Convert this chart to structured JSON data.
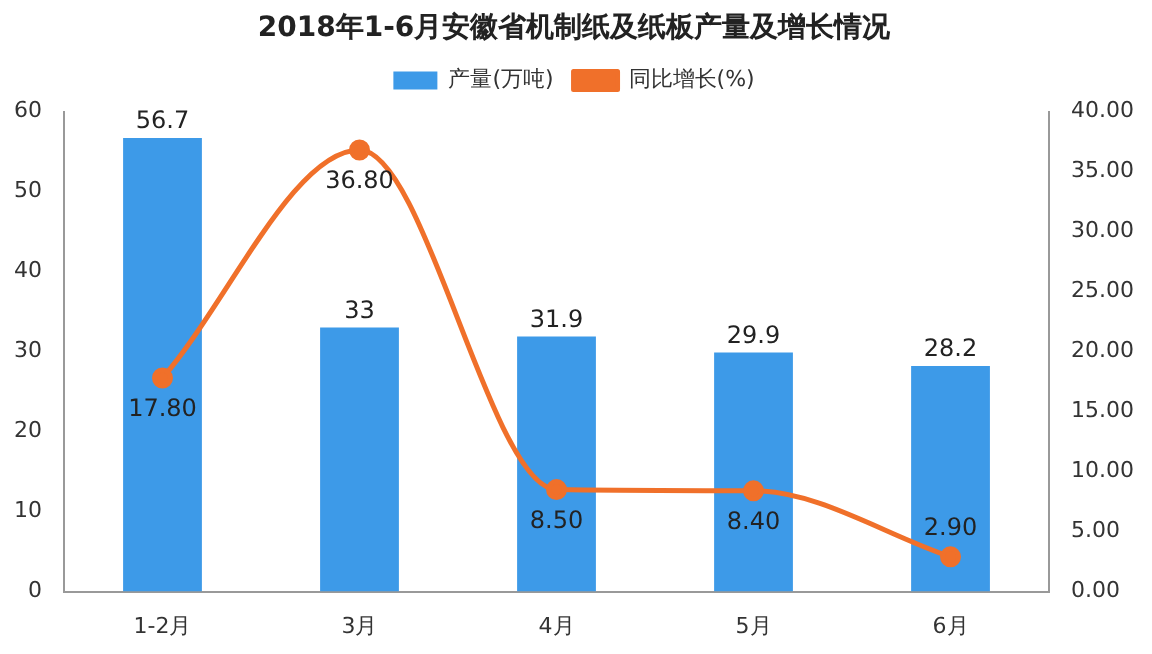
{
  "chart_data": {
    "type": "bar",
    "title": "2018年1-6月安徽省机制纸及纸板产量及增长情况",
    "categories": [
      "1-2月",
      "3月",
      "4月",
      "5月",
      "6月"
    ],
    "series": [
      {
        "name": "产量(万吨)",
        "color": "#3d9ae8",
        "values": [
          56.7,
          33,
          31.9,
          29.9,
          28.2
        ],
        "value_labels": [
          "56.7",
          "33",
          "31.9",
          "29.9",
          "28.2"
        ]
      },
      {
        "name": "同比增长(%)",
        "type": "line",
        "axis": "y2",
        "color": "#f0702a",
        "values": [
          17.8,
          36.8,
          8.5,
          8.4,
          2.9
        ],
        "value_labels": [
          "17.80",
          "36.80",
          "8.50",
          "8.40",
          "2.90"
        ]
      }
    ],
    "ylim": [
      0,
      60
    ],
    "yticks": [
      0,
      10,
      20,
      30,
      40,
      50,
      60
    ],
    "y2lim": [
      0,
      40
    ],
    "y2ticks": [
      {
        "value": 0,
        "label": "0.00"
      },
      {
        "value": 5,
        "label": "5.00"
      },
      {
        "value": 10,
        "label": "10.00"
      },
      {
        "value": 15,
        "label": "15.00"
      },
      {
        "value": 20,
        "label": "20.00"
      },
      {
        "value": 25,
        "label": "25.00"
      },
      {
        "value": 30,
        "label": "30.00"
      },
      {
        "value": 35,
        "label": "35.00"
      },
      {
        "value": 40,
        "label": "40.00"
      }
    ],
    "legend": "top",
    "marker": "circle",
    "line_style": "solid"
  }
}
